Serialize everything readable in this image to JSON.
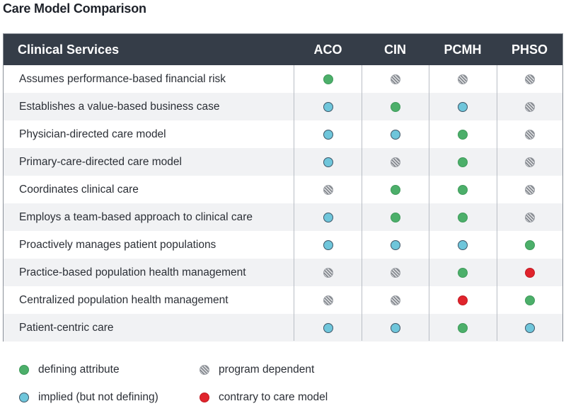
{
  "title": "Care Model Comparison",
  "table": {
    "header": {
      "services_label": "Clinical Services",
      "columns": [
        "ACO",
        "CIN",
        "PCMH",
        "PHSO"
      ]
    },
    "rows": [
      {
        "service": "Assumes performance-based financial risk",
        "values": [
          "defining",
          "dependent",
          "dependent",
          "dependent"
        ]
      },
      {
        "service": "Establishes a value-based business case",
        "values": [
          "implied",
          "defining",
          "implied",
          "dependent"
        ]
      },
      {
        "service": "Physician-directed care model",
        "values": [
          "implied",
          "implied",
          "defining",
          "dependent"
        ]
      },
      {
        "service": "Primary-care-directed care model",
        "values": [
          "implied",
          "dependent",
          "defining",
          "dependent"
        ]
      },
      {
        "service": "Coordinates clinical care",
        "values": [
          "dependent",
          "defining",
          "defining",
          "dependent"
        ]
      },
      {
        "service": "Employs a team-based approach to clinical care",
        "values": [
          "implied",
          "defining",
          "defining",
          "dependent"
        ]
      },
      {
        "service": "Proactively manages patient populations",
        "values": [
          "implied",
          "implied",
          "implied",
          "defining"
        ]
      },
      {
        "service": "Practice-based population health management",
        "values": [
          "dependent",
          "dependent",
          "defining",
          "contrary"
        ]
      },
      {
        "service": "Centralized population health management",
        "values": [
          "dependent",
          "dependent",
          "contrary",
          "defining"
        ]
      },
      {
        "service": "Patient-centric care",
        "values": [
          "implied",
          "implied",
          "defining",
          "implied"
        ]
      }
    ]
  },
  "legend": {
    "defining": "defining attribute",
    "implied": "implied (but not defining)",
    "dependent": "program dependent",
    "contrary": "contrary to care model"
  },
  "colors": {
    "header_bg": "#353d48",
    "defining": "#4caf6a",
    "implied": "#6fc6db",
    "contrary": "#e0242c",
    "dependent": "#9a9ea4"
  }
}
